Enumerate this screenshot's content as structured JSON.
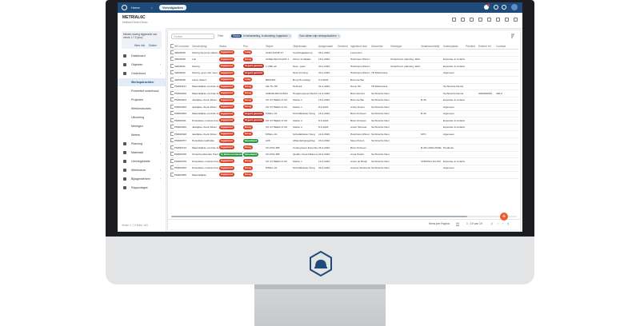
{
  "topbar": {
    "home": "Home",
    "breadcrumb_section": "Vervolgacties",
    "sep": "›"
  },
  "header": {
    "title": "METRIAL6C",
    "subtitle": "Melissa Demo Demo"
  },
  "sidebar": {
    "info_text": "Melden storing bijgewerkt nav versie 1.7.0 (acc)",
    "info_more": "Meer info",
    "info_close": "Sluiten",
    "items": [
      {
        "label": "Dashboard",
        "chev": ""
      },
      {
        "label": "Objecten",
        "chev": "›"
      },
      {
        "label": "Onderhoud",
        "chev": "›"
      },
      {
        "label": "Werkopdrachten",
        "chev": ""
      },
      {
        "label": "Preventief onderhoud",
        "chev": ""
      },
      {
        "label": "Projecten",
        "chev": ""
      },
      {
        "label": "Werkinstructies",
        "chev": ""
      },
      {
        "label": "Uitvoering",
        "chev": ""
      },
      {
        "label": "Metingen",
        "chev": ""
      },
      {
        "label": "Meters",
        "chev": ""
      },
      {
        "label": "Planning",
        "chev": "›"
      },
      {
        "label": "Materiaal",
        "chev": "›"
      },
      {
        "label": "Urenregistratie",
        "chev": ""
      },
      {
        "label": "Werktoeuw",
        "chev": "›"
      },
      {
        "label": "Bijlagenbeheer",
        "chev": "›"
      },
      {
        "label": "Rapportages",
        "chev": ""
      }
    ],
    "version": "Versie: 1.7.0 Build: 163"
  },
  "toolbar": {
    "search_placeholder": "Zoeken",
    "filter_label": "Filter",
    "chip1_key": "Status",
    "chip1_val": "In behandeling, In afronding, Ingepland",
    "chip2_val": "Toon alleen mijn werkopdrachten",
    "chip_close": "×"
  },
  "table": {
    "columns": [
      "",
      "WO-nummer",
      "Omschrijving",
      "Status",
      "Prio",
      "Object",
      "Objectnaam",
      "Aangemaakt",
      "Gewenst",
      "Ingediend door",
      "Uitvoerder",
      "Ordertype",
      "Verantwoordelijk",
      "Kostenplaats",
      "Prioriteit",
      "Externe ref",
      "Contract"
    ],
    "rows": [
      [
        "",
        "40000045",
        "Storing bij pomp station",
        "Ingepland",
        "Laag",
        "AFD2-PUMP-17",
        "Centrifugaalpomp",
        "25-1-2022",
        "",
        "Leertorium",
        "",
        "",
        "",
        "",
        "",
        "",
        ""
      ],
      [
        "",
        "40000030",
        "Lek",
        "Ingepland",
        "Hoog",
        "AFDELING-PLANT-1",
        "Afvoer installatie",
        "18-1-2022",
        "",
        "Helmhans Winter Demo",
        "",
        "Onderhoud, planning, Werkvoorbereiding",
        "",
        "Expertise & onderhoud",
        "",
        "",
        ""
      ],
      [
        "",
        "40000041",
        "Storing",
        "Ingepland",
        "Urgent gemeld",
        "1-VMF-ab",
        "Deel - pass",
        "20-1-2022",
        "",
        "Helmhans Winter Demo",
        "",
        "Onderhoud, planning, Werkvoorbereiding",
        "",
        "Expertise & onderhoud",
        "",
        "",
        ""
      ],
      [
        "",
        "40000042",
        "Storing, geen olie meer",
        "Ingepland",
        "Urgent gemeld",
        "",
        "Deel Vorming",
        "20-1-2022",
        "",
        "Helmhans Winter Demo",
        "TD Elektronica",
        "",
        "",
        "Algemeen",
        "",
        "",
        ""
      ],
      [
        "",
        "40000048",
        "Lamp 'defect'",
        "Ingepland",
        "Laag",
        "BRAND1",
        "Brug lift onsdag",
        "6-3-2022",
        "",
        "Bram de Bie",
        "",
        "",
        "",
        "",
        "",
        "",
        ""
      ],
      [
        "",
        "PM000127",
        "Maandelijkse controle brandblusser",
        "Ingepland",
        "Hoog",
        "CE-TIL-HP",
        "Heftruck",
        "21-4-2022",
        "",
        "Demo SC",
        "TD Elektronica",
        "",
        "",
        "Technische Dienst",
        "",
        "",
        ""
      ],
      [
        "",
        "PM000295",
        "Maandelijkse controle brandblusser",
        "Ingepland",
        "Hoog",
        "AFB420-BKOV-BAC",
        "Hoogfrequente Monitor Software",
        "12-4-2022",
        "",
        "Bram Rovers",
        "Technische Dienst",
        "",
        "",
        "Technische Dienst",
        "",
        "0000000051",
        "400-0"
      ],
      [
        "",
        "PM000263",
        "Jaarlijkse check Dinter",
        "Ingepland",
        "Hoog",
        "CK-SYTEEM-17-02",
        "Starter 1",
        "16-4-2022",
        "",
        "Bram de Bie",
        "Technische Dienst",
        "",
        "B-39",
        "Expertise & onderhoud",
        "",
        "",
        ""
      ],
      [
        "",
        "PM000252",
        "Jaarlijkse check Dinter",
        "Ingepland",
        "Hoog",
        "CK-SYTEEM-17-01",
        "Starter 1",
        "8-4-2022",
        "",
        "Anton Peters",
        "Technische Dienst",
        "",
        "",
        "Algemeen",
        "",
        "",
        ""
      ],
      [
        "",
        "PM000350",
        "Maandelijkse controle brandblusser",
        "Ingepland",
        "Urgent gemeld",
        "MTELL-01",
        "Schuifafsluiter Hoog",
        "16-4-2022",
        "",
        "Bram Schoeel",
        "Technische Dienst",
        "",
        "B-39",
        "Algemeen",
        "",
        "",
        ""
      ],
      [
        "",
        "PM000311",
        "Periodieke controle brand",
        "Ingepland",
        "Urgent gemeld",
        "CK-SYTEEM-17-05",
        "Starter 2",
        "8-4-2022",
        "",
        "Bram Schoeel",
        "Technische Dienst",
        "",
        "",
        "Expertise & onderhoud",
        "",
        "",
        ""
      ],
      [
        "",
        "PM000282",
        "Jaarlijkse check Dinter",
        "Ingepland",
        "Hoog",
        "CK-SYTEEM-17-05",
        "Starter 2",
        "8-4-2022",
        "",
        "Anton Schoeel",
        "Technische Dienst",
        "",
        "",
        "Expertise & onderhoud",
        "",
        "",
        ""
      ],
      [
        "",
        "PM000340",
        "Jaarlijkse check Dinter",
        "Ingepland",
        "Hoog",
        "MTELL-01",
        "Schuifafsluiter Hoog",
        "12-4-2022",
        "",
        "Helmhans Winter Demo",
        "Technische Dienst",
        "",
        "MTX",
        "Algemeen",
        "",
        "",
        ""
      ],
      [
        "",
        "PM000757",
        "Periodieke kalibratie",
        "Ingepland",
        "Standaard",
        "AV8",
        "Afhandelingsgedrag",
        "23-4-2022",
        "",
        "Mees Peters",
        "Technische Dienst",
        "",
        "",
        "",
        "",
        "",
        ""
      ],
      [
        "",
        "PM000719",
        "Maandelijkse controle brandblusser",
        "Ingepland",
        "Hoog",
        "CK-PS3-398",
        "Codesysteen Expertise Bandlift",
        "26-4-2022",
        "",
        "Bram Schoeel",
        "",
        "",
        "B-39 LANDLASSE",
        "Productie",
        "",
        "",
        ""
      ],
      [
        "",
        "PM000786",
        "Onderhoudsronde Transportband jaarlijks",
        "In Werkvoorbereiding",
        "Standaard",
        "CK-PS3-398",
        "Quality check Dikkovoorde (Bb)",
        "20-4-2022",
        "",
        "Anna Hultert",
        "Technische Dienst",
        "",
        "",
        "",
        "",
        "",
        ""
      ],
      [
        "",
        "PM000756",
        "Periodieke controle brand",
        "Ingepland",
        "Hoog",
        "CK-SYTEEM-17-02",
        "Starter 1",
        "12-4-2022",
        "",
        "Anton de Bruijn",
        "Technische Dienst",
        "",
        "CHRONO-FLUSS",
        "Expertise & onderhoud",
        "",
        "",
        ""
      ],
      [
        "",
        "PM000352",
        "Periodieke controle brand",
        "Ingepland",
        "Hoog",
        "MTELL-01",
        "Schuifafsluiter Hoog",
        "20-4-2022",
        "",
        "Antonie Werkvoorbereider",
        "Technische Dienst",
        "",
        "",
        "Algemeen",
        "",
        "",
        ""
      ],
      [
        "",
        "PM000385",
        "Maandelijkse",
        "Ingepland",
        "Hoog",
        "",
        "",
        "",
        "",
        "",
        "",
        "",
        "",
        "",
        "",
        "",
        ""
      ]
    ]
  },
  "footer": {
    "rows_per_page": "Items per Pagina:",
    "page_size": "50",
    "range": "1 - 19 van 19"
  },
  "colors": {
    "ingepland": "#e0452b",
    "werkvoorbereiding": "#2f9a45",
    "hoog": "#e0452b",
    "laag": "#e0452b",
    "urgent": "#c5372a",
    "standaard": "#2f9a45",
    "brand": "#1e4b7a",
    "fab": "#ef5b2b"
  }
}
